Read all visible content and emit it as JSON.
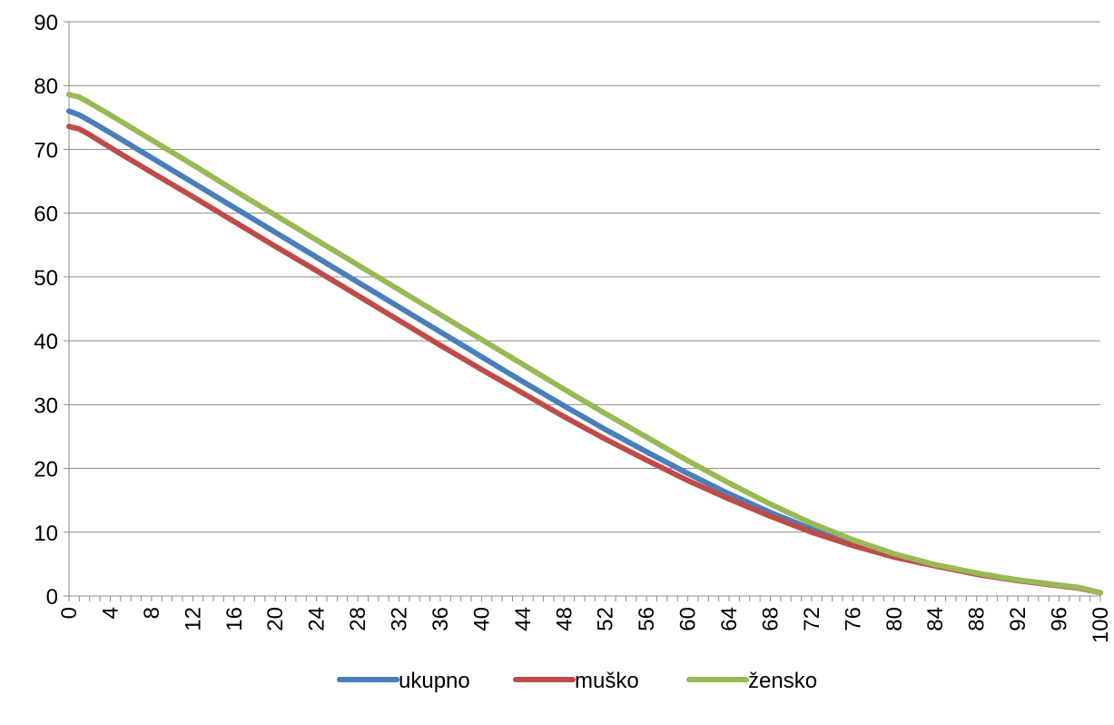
{
  "chart_data": {
    "type": "line",
    "title": "",
    "xlabel": "",
    "ylabel": "",
    "x_min": 0,
    "x_max": 100,
    "x_tick_step": 4,
    "x_ticks": [
      "0",
      "4",
      "8",
      "12",
      "16",
      "20",
      "24",
      "28",
      "32",
      "36",
      "40",
      "44",
      "48",
      "52",
      "56",
      "60",
      "64",
      "68",
      "72",
      "76",
      "80",
      "84",
      "88",
      "92",
      "96",
      "100"
    ],
    "ylim": [
      0,
      90
    ],
    "y_ticks": [
      "0",
      "10",
      "20",
      "30",
      "40",
      "50",
      "60",
      "70",
      "80",
      "90"
    ],
    "grid": true,
    "legend_position": "bottom",
    "series": [
      {
        "name": "ukupno",
        "color": "#4a7ebb",
        "points": [
          [
            0,
            76.0
          ],
          [
            1,
            75.4
          ],
          [
            2,
            74.5
          ],
          [
            4,
            72.6
          ],
          [
            8,
            68.7
          ],
          [
            12,
            64.8
          ],
          [
            16,
            60.9
          ],
          [
            20,
            57.0
          ],
          [
            24,
            53.1
          ],
          [
            28,
            49.2
          ],
          [
            32,
            45.3
          ],
          [
            36,
            41.4
          ],
          [
            40,
            37.5
          ],
          [
            44,
            33.6
          ],
          [
            48,
            29.8
          ],
          [
            52,
            26.1
          ],
          [
            56,
            22.6
          ],
          [
            60,
            19.2
          ],
          [
            64,
            16.0
          ],
          [
            68,
            13.1
          ],
          [
            72,
            10.5
          ],
          [
            76,
            8.2
          ],
          [
            80,
            6.3
          ],
          [
            84,
            4.8
          ],
          [
            88,
            3.5
          ],
          [
            92,
            2.5
          ],
          [
            96,
            1.7
          ],
          [
            98,
            1.3
          ],
          [
            100,
            0.5
          ]
        ]
      },
      {
        "name": "muško",
        "color": "#be4b48",
        "points": [
          [
            0,
            73.6
          ],
          [
            1,
            73.2
          ],
          [
            2,
            72.3
          ],
          [
            4,
            70.3
          ],
          [
            8,
            66.4
          ],
          [
            12,
            62.6
          ],
          [
            16,
            58.7
          ],
          [
            20,
            54.8
          ],
          [
            24,
            51.0
          ],
          [
            28,
            47.1
          ],
          [
            32,
            43.2
          ],
          [
            36,
            39.3
          ],
          [
            40,
            35.5
          ],
          [
            44,
            31.8
          ],
          [
            48,
            28.1
          ],
          [
            52,
            24.6
          ],
          [
            56,
            21.3
          ],
          [
            60,
            18.1
          ],
          [
            64,
            15.2
          ],
          [
            68,
            12.5
          ],
          [
            72,
            10.0
          ],
          [
            76,
            7.9
          ],
          [
            80,
            6.1
          ],
          [
            84,
            4.7
          ],
          [
            88,
            3.4
          ],
          [
            92,
            2.4
          ],
          [
            96,
            1.6
          ],
          [
            98,
            1.2
          ],
          [
            100,
            0.5
          ]
        ]
      },
      {
        "name": "žensko",
        "color": "#98b954",
        "points": [
          [
            0,
            78.6
          ],
          [
            1,
            78.2
          ],
          [
            2,
            77.3
          ],
          [
            4,
            75.4
          ],
          [
            8,
            71.5
          ],
          [
            12,
            67.6
          ],
          [
            16,
            63.6
          ],
          [
            20,
            59.7
          ],
          [
            24,
            55.8
          ],
          [
            28,
            51.9
          ],
          [
            32,
            48.0
          ],
          [
            36,
            44.1
          ],
          [
            40,
            40.2
          ],
          [
            44,
            36.3
          ],
          [
            48,
            32.4
          ],
          [
            52,
            28.6
          ],
          [
            56,
            24.9
          ],
          [
            60,
            21.2
          ],
          [
            64,
            17.7
          ],
          [
            68,
            14.4
          ],
          [
            72,
            11.4
          ],
          [
            76,
            8.8
          ],
          [
            80,
            6.6
          ],
          [
            84,
            4.9
          ],
          [
            88,
            3.6
          ],
          [
            92,
            2.5
          ],
          [
            96,
            1.7
          ],
          [
            98,
            1.3
          ],
          [
            100,
            0.5
          ]
        ]
      }
    ]
  }
}
